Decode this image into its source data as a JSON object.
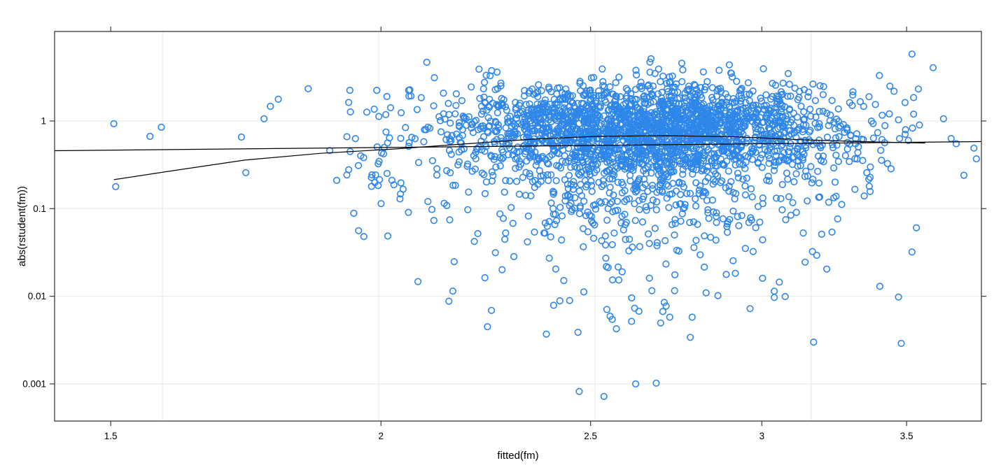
{
  "figure": {
    "background": "#ffffff"
  },
  "chart_data": {
    "type": "scatter",
    "title": "",
    "xlabel": "fitted(fm)",
    "ylabel": "abs(rstudent(fm))",
    "x_scale": "log10",
    "y_scale": "log10",
    "xlim": [
      1.413,
      3.79
    ],
    "ylim": [
      0.000377,
      10.5
    ],
    "x_ticks": [
      1.5,
      2,
      2.5,
      3,
      3.5
    ],
    "x_tick_labels": [
      "1.5",
      "2",
      "2.5",
      "3",
      "3.5"
    ],
    "y_ticks": [
      1,
      0.1,
      0.01,
      0.001
    ],
    "y_tick_labels": [
      "1",
      "0.1",
      "0.01",
      "0.001"
    ],
    "x_gridlines": [
      1.585,
      1.995,
      2.512,
      3.162
    ],
    "y_gridlines": [
      1,
      0.1,
      0.01,
      0.001
    ],
    "grid_on": true,
    "legend": null,
    "colors": {
      "point": "#2E86E8",
      "line": "#000000",
      "frame": "#3a3a3a",
      "grid": "#e7e7e7",
      "tick": "#3a3a3a"
    },
    "n_points_approx": 2900,
    "outlier_points": [
      [
        1.505,
        0.93
      ],
      [
        1.508,
        0.178
      ],
      [
        1.564,
        0.667
      ],
      [
        1.583,
        0.848
      ],
      [
        1.724,
        0.655
      ],
      [
        1.732,
        0.257
      ],
      [
        1.766,
        1.06
      ],
      [
        1.778,
        1.47
      ],
      [
        1.793,
        1.77
      ],
      [
        1.851,
        2.33
      ],
      [
        1.894,
        0.46
      ],
      [
        1.908,
        0.21
      ],
      [
        1.936,
        1.27
      ],
      [
        1.943,
        0.0885
      ],
      [
        1.953,
        0.056
      ],
      [
        1.964,
        0.048
      ],
      [
        1.981,
        0.243
      ],
      [
        1.992,
        0.506
      ],
      [
        2.47,
        0.00082
      ],
      [
        2.536,
        0.00072
      ],
      [
        2.623,
        0.001
      ],
      [
        2.681,
        0.00102
      ],
      [
        2.78,
        0.0034
      ],
      [
        2.385,
        0.0037
      ],
      [
        2.24,
        0.0045
      ],
      [
        2.62,
        0.0073
      ],
      [
        2.7,
        0.0067
      ],
      [
        3.04,
        0.0097
      ],
      [
        3.17,
        0.003
      ],
      [
        3.48,
        0.0029
      ],
      [
        2.15,
        0.0088
      ],
      [
        2.1,
        4.68
      ],
      [
        2.22,
        3.9
      ],
      [
        2.25,
        3.75
      ],
      [
        3.52,
        5.8
      ],
      [
        3.6,
        4.05
      ],
      [
        3.4,
        3.3
      ],
      [
        3.64,
        1.06
      ],
      [
        3.67,
        0.63
      ],
      [
        3.69,
        0.55
      ],
      [
        3.72,
        0.24
      ],
      [
        3.76,
        0.49
      ],
      [
        3.77,
        0.37
      ],
      [
        3.47,
        0.0098
      ],
      [
        3.52,
        0.032
      ]
    ],
    "cloud": {
      "seed": 1337,
      "n": 2700,
      "logx_mean": 0.425,
      "logx_sd": 0.046,
      "logx_min": 0.302,
      "logx_max": 0.55,
      "logy_components": [
        {
          "w": 0.81,
          "mean": -0.1,
          "sd": 0.27
        },
        {
          "w": 0.15,
          "mean": -0.75,
          "sd": 0.35
        },
        {
          "w": 0.04,
          "mean": -1.45,
          "sd": 0.45
        }
      ],
      "logy_min": -3.2,
      "logy_max": 0.72
    },
    "left_cluster": {
      "seed": 77,
      "n": 38,
      "logx_min": 0.285,
      "logx_max": 0.316,
      "logy_mean": -0.35,
      "logy_sd": 0.42,
      "logy_min": -1.45,
      "logy_max": 0.35
    },
    "regression_line": {
      "points": [
        [
          1.413,
          0.458
        ],
        [
          3.79,
          0.582
        ]
      ]
    },
    "smooth_line": {
      "points": [
        [
          1.505,
          0.214
        ],
        [
          1.595,
          0.266
        ],
        [
          1.73,
          0.358
        ],
        [
          1.876,
          0.428
        ],
        [
          2.03,
          0.479
        ],
        [
          2.181,
          0.545
        ],
        [
          2.35,
          0.62
        ],
        [
          2.515,
          0.667
        ],
        [
          2.71,
          0.68
        ],
        [
          2.92,
          0.66
        ],
        [
          3.14,
          0.609
        ],
        [
          3.39,
          0.576
        ],
        [
          3.57,
          0.56
        ]
      ]
    }
  }
}
